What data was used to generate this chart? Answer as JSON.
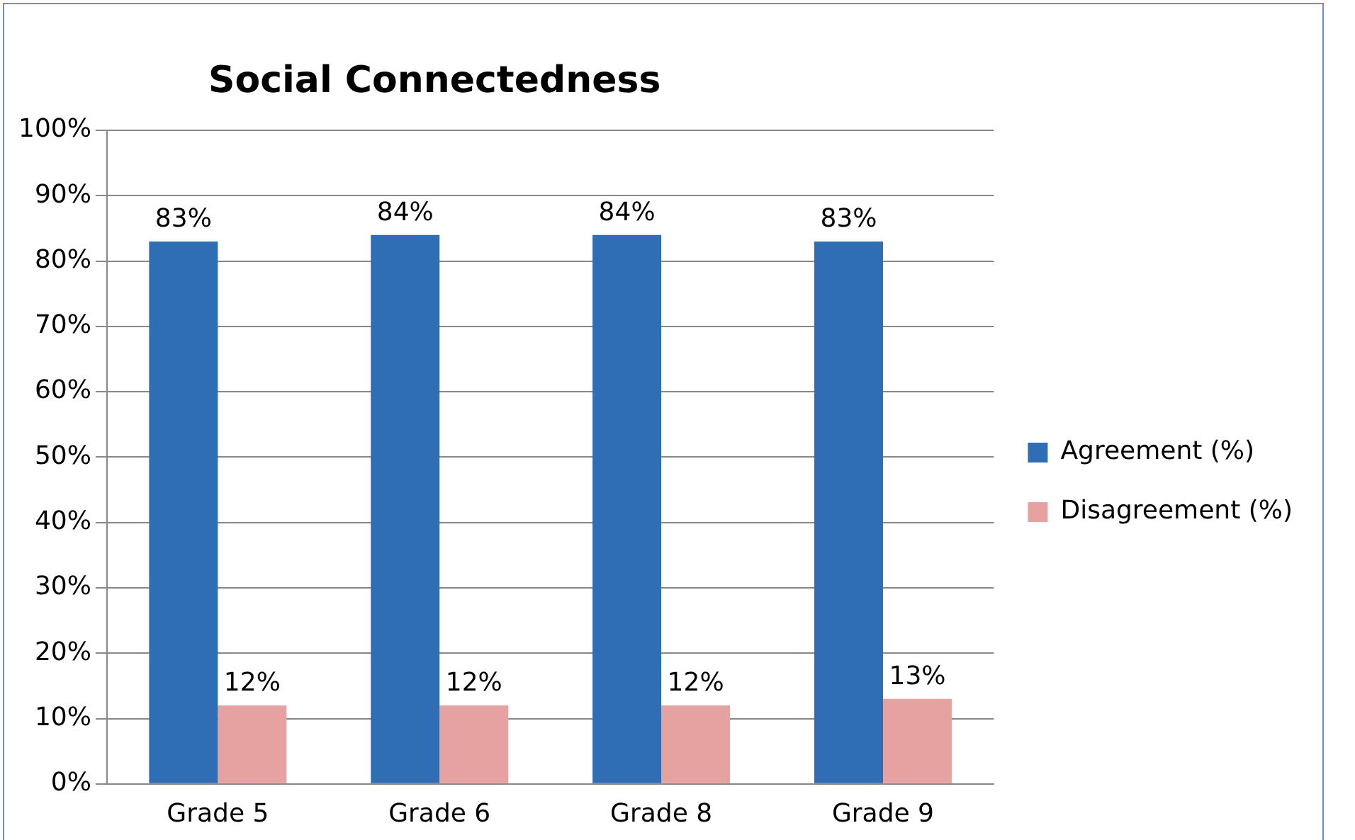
{
  "chart_data": {
    "type": "bar",
    "title": "Social Connectedness",
    "categories": [
      "Grade 5",
      "Grade 6",
      "Grade 8",
      "Grade 9"
    ],
    "series": [
      {
        "name": "Agreement (%)",
        "color": "#2f6eb5",
        "values": [
          83,
          84,
          84,
          83
        ],
        "value_labels": [
          "83%",
          "84%",
          "84%",
          "83%"
        ]
      },
      {
        "name": "Disagreement (%)",
        "color": "#e6a2a0",
        "values": [
          12,
          12,
          12,
          13
        ],
        "value_labels": [
          "12%",
          "12%",
          "12%",
          "13%"
        ]
      }
    ],
    "ylim": [
      0,
      100
    ],
    "yticks": [
      {
        "value": 0,
        "label": "0%"
      },
      {
        "value": 10,
        "label": "10%"
      },
      {
        "value": 20,
        "label": "20%"
      },
      {
        "value": 30,
        "label": "30%"
      },
      {
        "value": 40,
        "label": "40%"
      },
      {
        "value": 50,
        "label": "50%"
      },
      {
        "value": 60,
        "label": "60%"
      },
      {
        "value": 70,
        "label": "70%"
      },
      {
        "value": 80,
        "label": "80%"
      },
      {
        "value": 90,
        "label": "90%"
      },
      {
        "value": 100,
        "label": "100%"
      }
    ],
    "grid": "y",
    "legend": "right"
  }
}
